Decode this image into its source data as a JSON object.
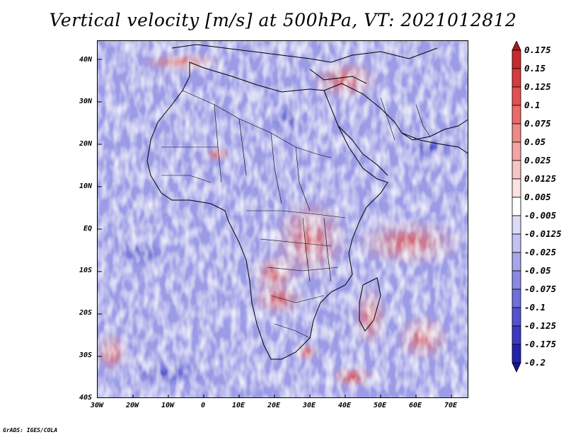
{
  "title": "Vertical velocity [m/s] at 500hPa, VT: 2021012812",
  "footer": "GrADS: IGES/COLA",
  "map": {
    "lat_ticks": [
      "40N",
      "30N",
      "20N",
      "10N",
      "EQ",
      "10S",
      "20S",
      "30S",
      "40S"
    ],
    "lon_ticks": [
      "30W",
      "20W",
      "10W",
      "0",
      "10E",
      "20E",
      "30E",
      "40E",
      "50E",
      "60E",
      "70E"
    ]
  },
  "colorbar": {
    "labels": [
      "0.175",
      "0.15",
      "0.125",
      "0.1",
      "0.075",
      "0.05",
      "0.025",
      "0.0125",
      "0.005",
      "-0.005",
      "-0.0125",
      "-0.025",
      "-0.05",
      "-0.075",
      "-0.1",
      "-0.125",
      "-0.175",
      "-0.2"
    ],
    "colors": [
      "#b01a1a",
      "#c82a2a",
      "#d93a3a",
      "#e55050",
      "#ec6a6a",
      "#f08888",
      "#f4a4a4",
      "#f8c4c4",
      "#fce2e2",
      "#ffffff",
      "#dcdcf8",
      "#c2c2f2",
      "#a6a6ec",
      "#8a8ae4",
      "#6e6edc",
      "#5252d2",
      "#3a3ac4",
      "#2222ae",
      "#14149a"
    ]
  }
}
